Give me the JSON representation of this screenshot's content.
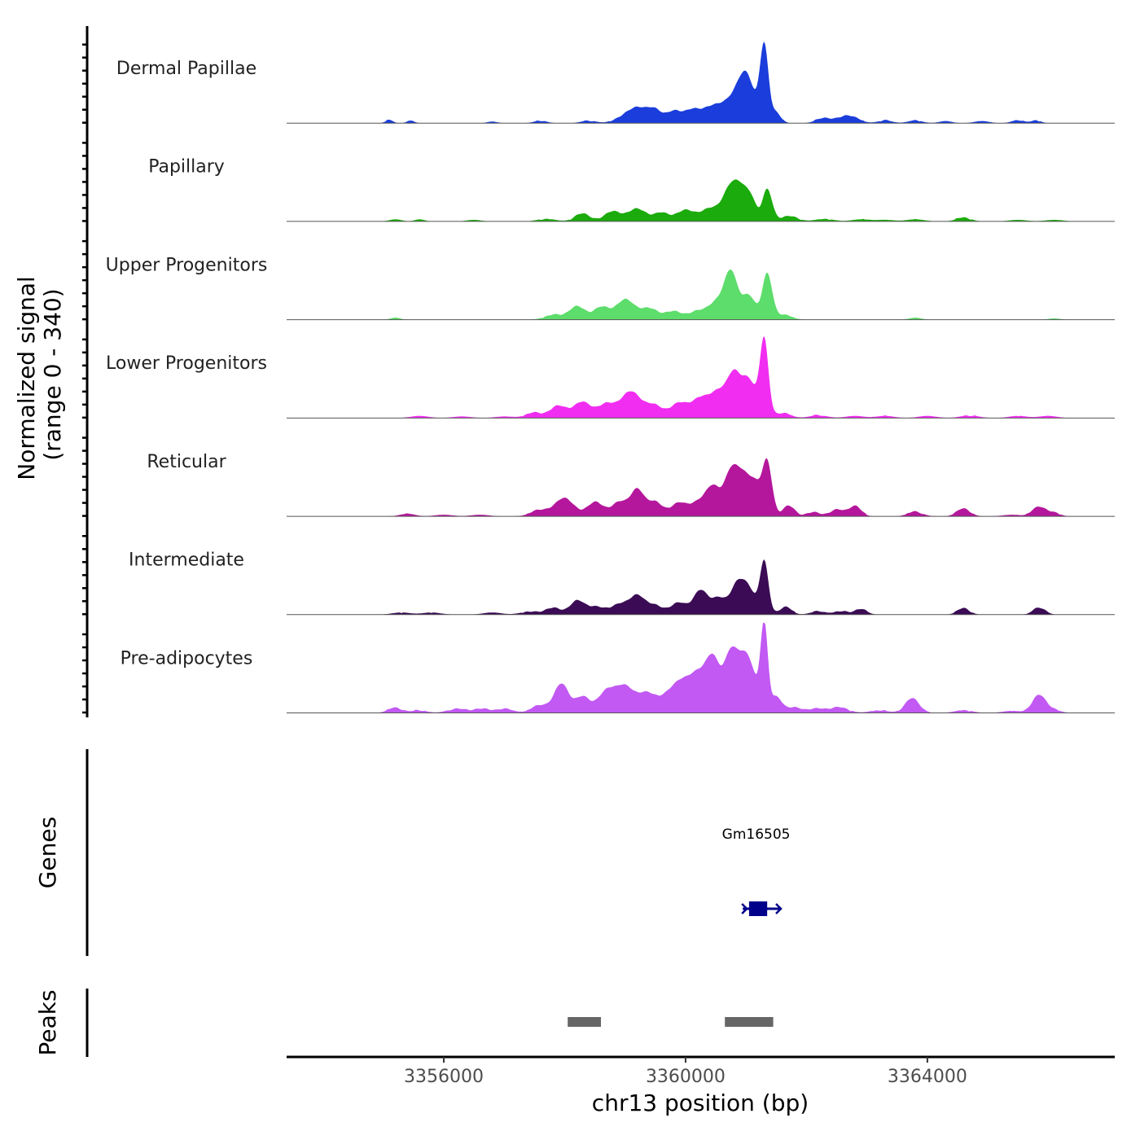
{
  "chart_data": {
    "type": "area",
    "y_axis_title_line1": "Normalized signal",
    "y_axis_title_line2": "(range 0 - 340)",
    "y_range": [
      0,
      340
    ],
    "x_axis_title": "chr13 position (bp)",
    "x_range": [
      3353400,
      3367100
    ],
    "x_ticks": [
      3356000,
      3360000,
      3364000
    ],
    "x_tick_labels": [
      "3356000",
      "3360000",
      "3364000"
    ],
    "tracks": [
      {
        "name": "Dermal Papillae",
        "color": "#1a3ddb",
        "peaks": [
          [
            3355100,
            12,
            60
          ],
          [
            3355450,
            10,
            60
          ],
          [
            3356800,
            6,
            80
          ],
          [
            3357600,
            10,
            100
          ],
          [
            3358400,
            10,
            120
          ],
          [
            3358900,
            14,
            130
          ],
          [
            3359200,
            60,
            160
          ],
          [
            3359500,
            45,
            120
          ],
          [
            3359800,
            40,
            120
          ],
          [
            3360100,
            50,
            140
          ],
          [
            3360400,
            45,
            130
          ],
          [
            3360700,
            70,
            180
          ],
          [
            3360950,
            110,
            140
          ],
          [
            3361050,
            80,
            120
          ],
          [
            3361300,
            290,
            70
          ],
          [
            3361500,
            40,
            80
          ],
          [
            3362300,
            20,
            130
          ],
          [
            3362700,
            30,
            150
          ],
          [
            3363300,
            10,
            120
          ],
          [
            3363800,
            10,
            120
          ],
          [
            3364300,
            8,
            100
          ],
          [
            3364900,
            8,
            120
          ],
          [
            3365500,
            12,
            100
          ],
          [
            3365800,
            10,
            80
          ]
        ]
      },
      {
        "name": "Papillary",
        "color": "#1bab0c",
        "peaks": [
          [
            3355200,
            8,
            100
          ],
          [
            3355600,
            8,
            80
          ],
          [
            3356500,
            6,
            120
          ],
          [
            3357700,
            10,
            150
          ],
          [
            3358300,
            30,
            130
          ],
          [
            3358800,
            40,
            130
          ],
          [
            3359200,
            50,
            140
          ],
          [
            3359600,
            35,
            120
          ],
          [
            3360000,
            45,
            140
          ],
          [
            3360400,
            50,
            140
          ],
          [
            3360750,
            130,
            130
          ],
          [
            3360950,
            90,
            110
          ],
          [
            3361100,
            60,
            80
          ],
          [
            3361350,
            120,
            80
          ],
          [
            3361700,
            20,
            150
          ],
          [
            3362300,
            10,
            150
          ],
          [
            3362900,
            8,
            150
          ],
          [
            3363300,
            6,
            150
          ],
          [
            3363800,
            8,
            150
          ],
          [
            3364600,
            15,
            120
          ],
          [
            3365500,
            6,
            150
          ],
          [
            3366100,
            6,
            150
          ]
        ]
      },
      {
        "name": "Upper Progenitors",
        "color": "#5ddd6b",
        "peaks": [
          [
            3355200,
            8,
            80
          ],
          [
            3357800,
            18,
            140
          ],
          [
            3358200,
            50,
            140
          ],
          [
            3358600,
            45,
            130
          ],
          [
            3359000,
            75,
            160
          ],
          [
            3359400,
            40,
            150
          ],
          [
            3359800,
            30,
            150
          ],
          [
            3360200,
            30,
            150
          ],
          [
            3360500,
            60,
            130
          ],
          [
            3360750,
            180,
            110
          ],
          [
            3361050,
            90,
            110
          ],
          [
            3361350,
            170,
            80
          ],
          [
            3361600,
            20,
            140
          ],
          [
            3363800,
            8,
            100
          ],
          [
            3366100,
            5,
            100
          ]
        ]
      },
      {
        "name": "Lower Progenitors",
        "color": "#f12df1",
        "peaks": [
          [
            3355600,
            8,
            150
          ],
          [
            3356300,
            6,
            150
          ],
          [
            3357000,
            6,
            150
          ],
          [
            3357500,
            20,
            140
          ],
          [
            3357900,
            45,
            140
          ],
          [
            3358300,
            60,
            150
          ],
          [
            3358700,
            50,
            140
          ],
          [
            3359100,
            100,
            170
          ],
          [
            3359500,
            45,
            140
          ],
          [
            3359900,
            55,
            140
          ],
          [
            3360250,
            70,
            150
          ],
          [
            3360550,
            90,
            140
          ],
          [
            3360800,
            150,
            110
          ],
          [
            3361050,
            140,
            120
          ],
          [
            3361300,
            290,
            70
          ],
          [
            3361600,
            20,
            130
          ],
          [
            3362200,
            10,
            150
          ],
          [
            3362800,
            8,
            150
          ],
          [
            3363300,
            8,
            150
          ],
          [
            3364000,
            8,
            150
          ],
          [
            3364700,
            10,
            150
          ],
          [
            3365500,
            8,
            150
          ],
          [
            3366000,
            8,
            150
          ]
        ]
      },
      {
        "name": "Reticular",
        "color": "#b4179c",
        "peaks": [
          [
            3355400,
            10,
            120
          ],
          [
            3356000,
            6,
            150
          ],
          [
            3356600,
            6,
            150
          ],
          [
            3357600,
            25,
            150
          ],
          [
            3358000,
            70,
            150
          ],
          [
            3358500,
            55,
            130
          ],
          [
            3358900,
            55,
            130
          ],
          [
            3359200,
            100,
            110
          ],
          [
            3359500,
            55,
            130
          ],
          [
            3359900,
            50,
            130
          ],
          [
            3360200,
            45,
            130
          ],
          [
            3360450,
            110,
            120
          ],
          [
            3360750,
            160,
            110
          ],
          [
            3360950,
            130,
            110
          ],
          [
            3361150,
            110,
            100
          ],
          [
            3361350,
            200,
            80
          ],
          [
            3361700,
            40,
            100
          ],
          [
            3362100,
            15,
            120
          ],
          [
            3362500,
            25,
            120
          ],
          [
            3362800,
            40,
            100
          ],
          [
            3363800,
            18,
            120
          ],
          [
            3364600,
            30,
            110
          ],
          [
            3365400,
            6,
            150
          ],
          [
            3365850,
            38,
            110
          ],
          [
            3366100,
            12,
            100
          ]
        ]
      },
      {
        "name": "Intermediate",
        "color": "#3b0b55",
        "peaks": [
          [
            3355300,
            8,
            150
          ],
          [
            3355800,
            8,
            150
          ],
          [
            3356800,
            8,
            150
          ],
          [
            3357400,
            10,
            150
          ],
          [
            3357800,
            25,
            140
          ],
          [
            3358200,
            50,
            120
          ],
          [
            3358500,
            30,
            140
          ],
          [
            3358900,
            40,
            140
          ],
          [
            3359200,
            70,
            120
          ],
          [
            3359500,
            35,
            140
          ],
          [
            3359900,
            45,
            130
          ],
          [
            3360250,
            90,
            120
          ],
          [
            3360550,
            60,
            120
          ],
          [
            3360850,
            110,
            110
          ],
          [
            3361050,
            90,
            110
          ],
          [
            3361300,
            200,
            70
          ],
          [
            3361650,
            30,
            100
          ],
          [
            3362200,
            12,
            130
          ],
          [
            3362600,
            12,
            130
          ],
          [
            3362900,
            20,
            100
          ],
          [
            3364600,
            25,
            100
          ],
          [
            3365850,
            28,
            100
          ]
        ]
      },
      {
        "name": "Pre-adipocytes",
        "color": "#c259f3",
        "peaks": [
          [
            3355200,
            20,
            120
          ],
          [
            3355600,
            10,
            120
          ],
          [
            3356200,
            15,
            150
          ],
          [
            3356600,
            15,
            150
          ],
          [
            3357000,
            15,
            150
          ],
          [
            3357600,
            30,
            140
          ],
          [
            3357950,
            110,
            120
          ],
          [
            3358300,
            60,
            120
          ],
          [
            3358700,
            80,
            150
          ],
          [
            3359000,
            90,
            150
          ],
          [
            3359350,
            70,
            150
          ],
          [
            3359700,
            60,
            150
          ],
          [
            3359950,
            100,
            140
          ],
          [
            3360200,
            120,
            130
          ],
          [
            3360450,
            200,
            120
          ],
          [
            3360750,
            220,
            110
          ],
          [
            3360950,
            150,
            100
          ],
          [
            3361100,
            130,
            100
          ],
          [
            3361300,
            330,
            60
          ],
          [
            3361500,
            60,
            90
          ],
          [
            3361800,
            20,
            150
          ],
          [
            3362200,
            15,
            150
          ],
          [
            3362550,
            20,
            150
          ],
          [
            3363200,
            10,
            150
          ],
          [
            3363750,
            55,
            120
          ],
          [
            3364600,
            10,
            150
          ],
          [
            3365400,
            8,
            150
          ],
          [
            3365850,
            70,
            110
          ],
          [
            3366100,
            10,
            110
          ]
        ]
      }
    ],
    "genes": [
      {
        "name": "Gm16505",
        "start": 3361000,
        "end": 3361550,
        "exon_start": 3361050,
        "exon_end": 3361350,
        "color": "#00008b"
      }
    ],
    "genes_axis_title": "Genes",
    "peaks_track": {
      "name": "Peaks",
      "color": "#666666",
      "regions": [
        [
          3358050,
          3358600
        ],
        [
          3360650,
          3361450
        ]
      ]
    }
  }
}
